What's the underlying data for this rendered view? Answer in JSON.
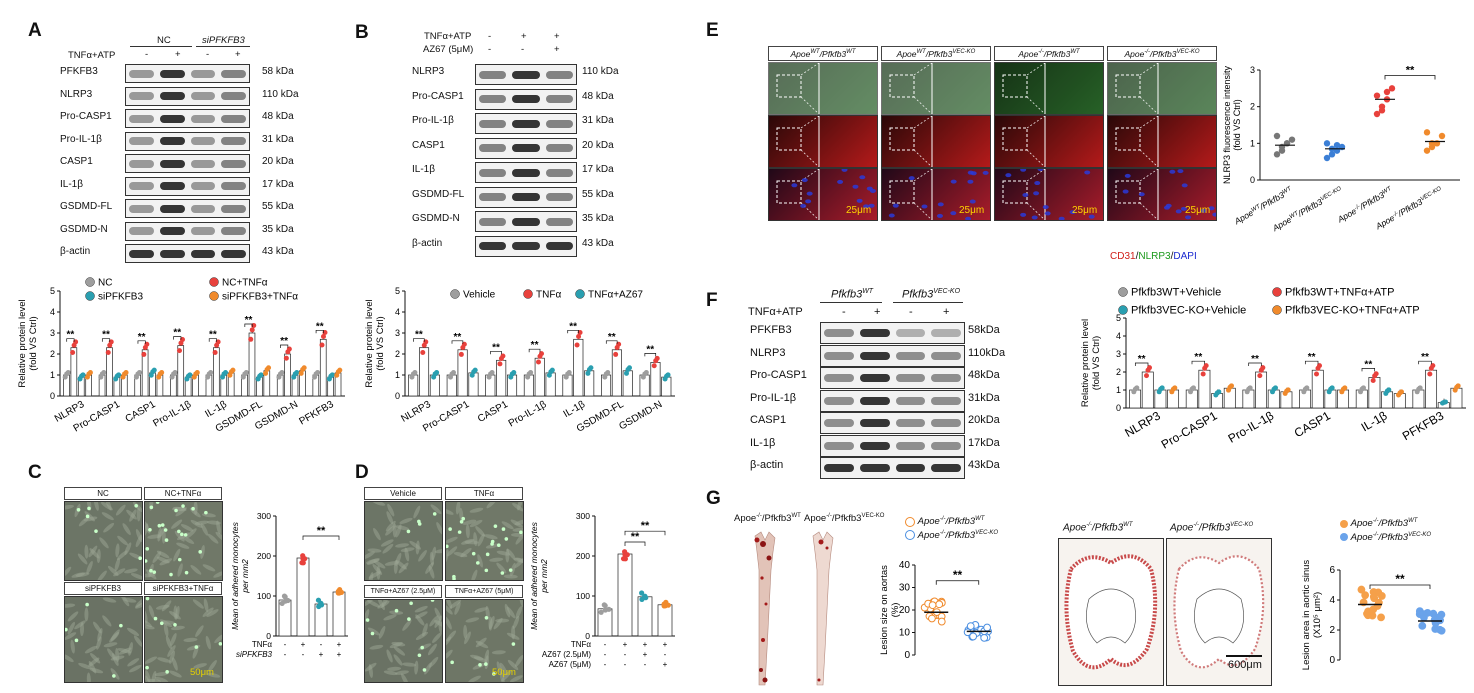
{
  "panels": {
    "A": {
      "label": "A",
      "groups": [
        "NC",
        "siPFKFB3"
      ],
      "treatment_label": "TNFα+ATP",
      "treatment_signs": [
        "-",
        "+",
        "-",
        "+"
      ],
      "blots": [
        {
          "name": "PFKFB3",
          "kda": "58  kDa"
        },
        {
          "name": "NLRP3",
          "kda": "110  kDa"
        },
        {
          "name": "Pro-CASP1",
          "kda": "48  kDa"
        },
        {
          "name": "Pro-IL-1β",
          "kda": "31  kDa"
        },
        {
          "name": "CASP1",
          "kda": "20  kDa"
        },
        {
          "name": "IL-1β",
          "kda": "17  kDa"
        },
        {
          "name": "GSDMD-FL",
          "kda": "55  kDa"
        },
        {
          "name": "GSDMD-N",
          "kda": "35  kDa"
        },
        {
          "name": "β-actin",
          "kda": "43  kDa"
        }
      ],
      "legend": [
        "NC",
        "siPFKFB3",
        "NC+TNFα",
        "siPFKFB3+TNFα"
      ]
    },
    "B": {
      "label": "B",
      "row1_label": "TNFα+ATP",
      "row1_signs": [
        "-",
        "+",
        "+"
      ],
      "row2_label": "AZ67 (5μM)",
      "row2_signs": [
        "-",
        "-",
        "+"
      ],
      "blots": [
        {
          "name": "NLRP3",
          "kda": "110 kDa"
        },
        {
          "name": "Pro-CASP1",
          "kda": "48  kDa"
        },
        {
          "name": "Pro-IL-1β",
          "kda": "31  kDa"
        },
        {
          "name": "CASP1",
          "kda": "20  kDa"
        },
        {
          "name": "IL-1β",
          "kda": "17  kDa"
        },
        {
          "name": "GSDMD-FL",
          "kda": "55  kDa"
        },
        {
          "name": "GSDMD-N",
          "kda": "35  kDa"
        },
        {
          "name": "β-actin",
          "kda": "43  kDa"
        }
      ],
      "legend": [
        "Vehicle",
        "TNFα",
        "TNFα+AZ67"
      ]
    },
    "C": {
      "label": "C",
      "photo_labels": [
        "NC",
        "NC+TNFα",
        "siPFKFB3",
        "siPFKFB3+TNFα"
      ],
      "scale": "50μm",
      "row1_label": "TNFα",
      "row1_signs": [
        "-",
        "+",
        "-",
        "+"
      ],
      "row2_label": "siPFKFB3",
      "row2_signs": [
        "-",
        "-",
        "+",
        "+"
      ],
      "sig": "**"
    },
    "D": {
      "label": "D",
      "photo_labels": [
        "Vehicle",
        "TNFα",
        "TNFα+AZ67 (2.5μM)",
        "TNFα+AZ67 (5μM)"
      ],
      "scale": "50μm",
      "row1_label": "TNFα",
      "row1_signs": [
        "-",
        "+",
        "+",
        "+"
      ],
      "row2_label": "AZ67 (2.5μM)",
      "row2_signs": [
        "-",
        "-",
        "+",
        "-"
      ],
      "row3_label": "AZ67 (5μM)",
      "row3_signs": [
        "-",
        "-",
        "-",
        "+"
      ],
      "sig": [
        "**",
        "**"
      ]
    },
    "E": {
      "label": "E",
      "column_labels": [
        "Apoe^WT/Pfkfb3^WT",
        "Apoe^WT/Pfkfb3^VEC-KO",
        "Apoe^-/-/Pfkfb3^WT",
        "Apoe^-/-/Pfkfb3^VEC-KO"
      ],
      "scale": "25μm",
      "stain_legend": [
        "CD31",
        "NLRP3",
        "DAPI"
      ],
      "sig": "**"
    },
    "F": {
      "label": "F",
      "groups": [
        "Pfkfb3^WT",
        "Pfkfb3^VEC-KO"
      ],
      "treatment_label": "TNFα+ATP",
      "treatment_signs": [
        "-",
        "+",
        "-",
        "+"
      ],
      "blots": [
        {
          "name": "PFKFB3",
          "kda": "58kDa"
        },
        {
          "name": "NLRP3",
          "kda": "110kDa"
        },
        {
          "name": "Pro-CASP1",
          "kda": "48kDa"
        },
        {
          "name": "Pro-IL-1β",
          "kda": "31kDa"
        },
        {
          "name": "CASP1",
          "kda": "20kDa"
        },
        {
          "name": "IL-1β",
          "kda": "17kDa"
        },
        {
          "name": "β-actin",
          "kda": "43kDa"
        }
      ],
      "legend": [
        "Pfkfb3^WT+Vehicle",
        "Pfkfb3^VEC-KO+Vehicle",
        "Pfkfb3^WT+TNFα+ATP",
        "Pfkfb3^VEC-KO+TNFα+ATP"
      ]
    },
    "G": {
      "label": "G",
      "aorta_labels": [
        "Apoe^-/-/Pfkfb3^WT",
        "Apoe^-/-/Pfkfb3^VEC-KO"
      ],
      "sinus_labels": [
        "Apoe^-/-/Pfkfb3^WT",
        "Apoe^-/-/Pfkfb3^VEC-KO"
      ],
      "scale": "600μm",
      "legend": [
        "Apoe^-/-/Pfkfb3^WT",
        "Apoe^-/-/Pfkfb3^VEC-KO"
      ],
      "sig": [
        "**",
        "**"
      ]
    }
  },
  "chart_data": [
    {
      "id": "A-bar",
      "type": "bar",
      "categories": [
        "NLRP3",
        "Pro-CASP1",
        "CASP1",
        "Pro-IL-1β",
        "IL-1β",
        "GSDMD-FL",
        "GSDMD-N",
        "PFKFB3"
      ],
      "series": [
        {
          "name": "NC",
          "values": [
            1,
            1,
            1,
            1,
            1,
            1,
            1,
            1
          ],
          "color": "#9e9e9e"
        },
        {
          "name": "NC+TNFα",
          "values": [
            2.3,
            2.3,
            2.2,
            2.4,
            2.3,
            3.0,
            2.0,
            2.7
          ],
          "color": "#e8413c"
        },
        {
          "name": "siPFKFB3",
          "values": [
            0.9,
            0.9,
            1.1,
            0.9,
            1.0,
            0.9,
            1.0,
            0.9
          ],
          "color": "#2a9fb0"
        },
        {
          "name": "siPFKFB3+TNFα",
          "values": [
            1.0,
            1.0,
            1.0,
            1.0,
            1.1,
            1.2,
            1.2,
            1.1
          ],
          "color": "#f08a2c"
        }
      ],
      "ylabel": "Relative protein level (fold VS Ctrl)",
      "ylim": [
        0,
        5
      ],
      "yticks": [
        0,
        1,
        2,
        3,
        4,
        5
      ],
      "sig": "**"
    },
    {
      "id": "B-bar",
      "type": "bar",
      "categories": [
        "NLRP3",
        "Pro-CASP1",
        "CASP1",
        "Pro-IL-1β",
        "IL-1β",
        "GSDMD-FL",
        "GSDMD-N"
      ],
      "series": [
        {
          "name": "Vehicle",
          "values": [
            1,
            1,
            1,
            1,
            1,
            1,
            1
          ],
          "color": "#9e9e9e"
        },
        {
          "name": "TNFα",
          "values": [
            2.3,
            2.2,
            1.7,
            1.8,
            2.7,
            2.2,
            1.6
          ],
          "color": "#e8413c"
        },
        {
          "name": "TNFα+AZ67",
          "values": [
            1.0,
            1.1,
            1.0,
            1.1,
            1.2,
            1.2,
            0.9
          ],
          "color": "#2a9fb0"
        }
      ],
      "ylabel": "Relative protein level (fold VS Ctrl)",
      "ylim": [
        0,
        5
      ],
      "yticks": [
        0,
        1,
        2,
        3,
        4,
        5
      ],
      "sig": "**"
    },
    {
      "id": "C-bar",
      "type": "bar",
      "categories": [
        "1",
        "2",
        "3",
        "4"
      ],
      "values": [
        90,
        195,
        80,
        110
      ],
      "colors": [
        "#9e9e9e",
        "#e8413c",
        "#2a9fb0",
        "#f08a2c"
      ],
      "ylabel": "Mean of adhered monocytes per mm2",
      "ylim": [
        0,
        300
      ],
      "yticks": [
        0,
        100,
        200,
        300
      ]
    },
    {
      "id": "D-bar",
      "type": "bar",
      "categories": [
        "1",
        "2",
        "3",
        "4"
      ],
      "values": [
        68,
        205,
        98,
        78
      ],
      "colors": [
        "#9e9e9e",
        "#e8413c",
        "#2a9fb0",
        "#f08a2c"
      ],
      "ylabel": "Mean of adhered monocytes per mm2",
      "ylim": [
        0,
        300
      ],
      "yticks": [
        0,
        100,
        200,
        300
      ]
    },
    {
      "id": "E-scatter",
      "type": "scatter",
      "categories": [
        "Apoe^WT/Pfkfb3^WT",
        "Apoe^WT/Pfkfb3^VEC-KO",
        "Apoe^-/-/Pfkfb3^WT",
        "Apoe^-/-/Pfkfb3^VEC-KO"
      ],
      "means": [
        0.95,
        0.85,
        2.2,
        1.05
      ],
      "points": [
        [
          0.7,
          0.8,
          1.0,
          1.1,
          1.2,
          0.9,
          1.0
        ],
        [
          0.6,
          0.7,
          0.8,
          0.9,
          1.0,
          0.85,
          0.95
        ],
        [
          1.8,
          2.0,
          2.2,
          2.5,
          2.3,
          1.9,
          2.4
        ],
        [
          0.8,
          0.9,
          1.0,
          1.2,
          1.3,
          1.0
        ]
      ],
      "colors": [
        "#777777",
        "#3b7fd6",
        "#e8413c",
        "#f08a2c"
      ],
      "ylabel": "NLRP3 fluorescence intensity (fold VS Ctrl)",
      "ylim": [
        0,
        3
      ],
      "yticks": [
        0,
        1,
        2,
        3
      ]
    },
    {
      "id": "F-bar",
      "type": "bar",
      "categories": [
        "NLRP3",
        "Pro-CASP1",
        "Pro-IL-1β",
        "CASP1",
        "IL-1β",
        "PFKFB3"
      ],
      "series": [
        {
          "name": "Pfkfb3^WT+Vehicle",
          "values": [
            1,
            1,
            1,
            1,
            1,
            1
          ],
          "color": "#9e9e9e"
        },
        {
          "name": "Pfkfb3^WT+TNFα+ATP",
          "values": [
            2.0,
            2.1,
            2.0,
            2.1,
            1.7,
            2.1
          ],
          "color": "#e8413c"
        },
        {
          "name": "Pfkfb3^VEC-KO+Vehicle",
          "values": [
            1.0,
            0.8,
            1.0,
            1.0,
            0.9,
            0.3
          ],
          "color": "#2a9fb0"
        },
        {
          "name": "Pfkfb3^VEC-KO+TNFα+ATP",
          "values": [
            1.0,
            1.1,
            0.9,
            1.0,
            0.8,
            1.1
          ],
          "color": "#f08a2c"
        }
      ],
      "ylabel": "Relative protein level (fold VS Ctrl)",
      "ylim": [
        0,
        5
      ],
      "yticks": [
        0,
        1,
        2,
        3,
        4,
        5
      ],
      "sig": "**"
    },
    {
      "id": "G-lesion",
      "type": "scatter",
      "categories": [
        "WT",
        "VEC-KO"
      ],
      "means": [
        19,
        10.5
      ],
      "ylabel": "Lesion size on aortas (%)",
      "ylim": [
        0,
        40
      ],
      "yticks": [
        0,
        10,
        20,
        30,
        40
      ]
    },
    {
      "id": "G-sinus",
      "type": "scatter",
      "categories": [
        "WT",
        "VEC-KO"
      ],
      "means": [
        3.7,
        2.6
      ],
      "ylabel": "Lesion area in aortic sinus (X10^5 μm^2)",
      "ylim": [
        0,
        6
      ],
      "yticks": [
        0,
        2,
        4,
        6
      ]
    }
  ]
}
